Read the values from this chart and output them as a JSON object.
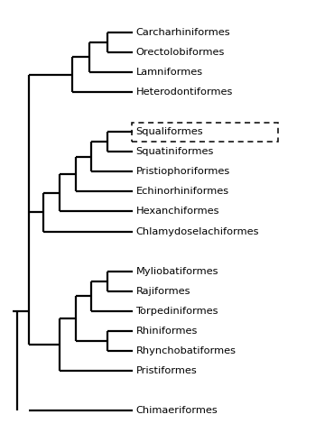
{
  "background_color": "#ffffff",
  "line_color": "#000000",
  "line_width": 1.6,
  "font_size": 8.2,
  "taxa": [
    "Carcharhiniformes",
    "Orectolobiformes",
    "Lamniformes",
    "Heterodontiformes",
    "Squaliformes",
    "Squatiniformes",
    "Pristiophoriformes",
    "Echinorhiniformes",
    "Hexanchiformes",
    "Chlamydoselachiformes",
    "Myliobatiformes",
    "Rajiformes",
    "Torpediniformes",
    "Rhiniformes",
    "Rhynchobatiformes",
    "Pristiformes",
    "Chimaeriformes"
  ],
  "boxed_taxon": "Squaliformes",
  "y_positions": [
    20,
    19,
    18,
    17,
    15,
    14,
    13,
    12,
    11,
    10,
    8,
    7,
    6,
    5,
    4,
    3,
    1
  ],
  "tip_x": 0.68,
  "xlim": [
    -0.05,
    1.8
  ],
  "ylim": [
    0,
    21.5
  ]
}
